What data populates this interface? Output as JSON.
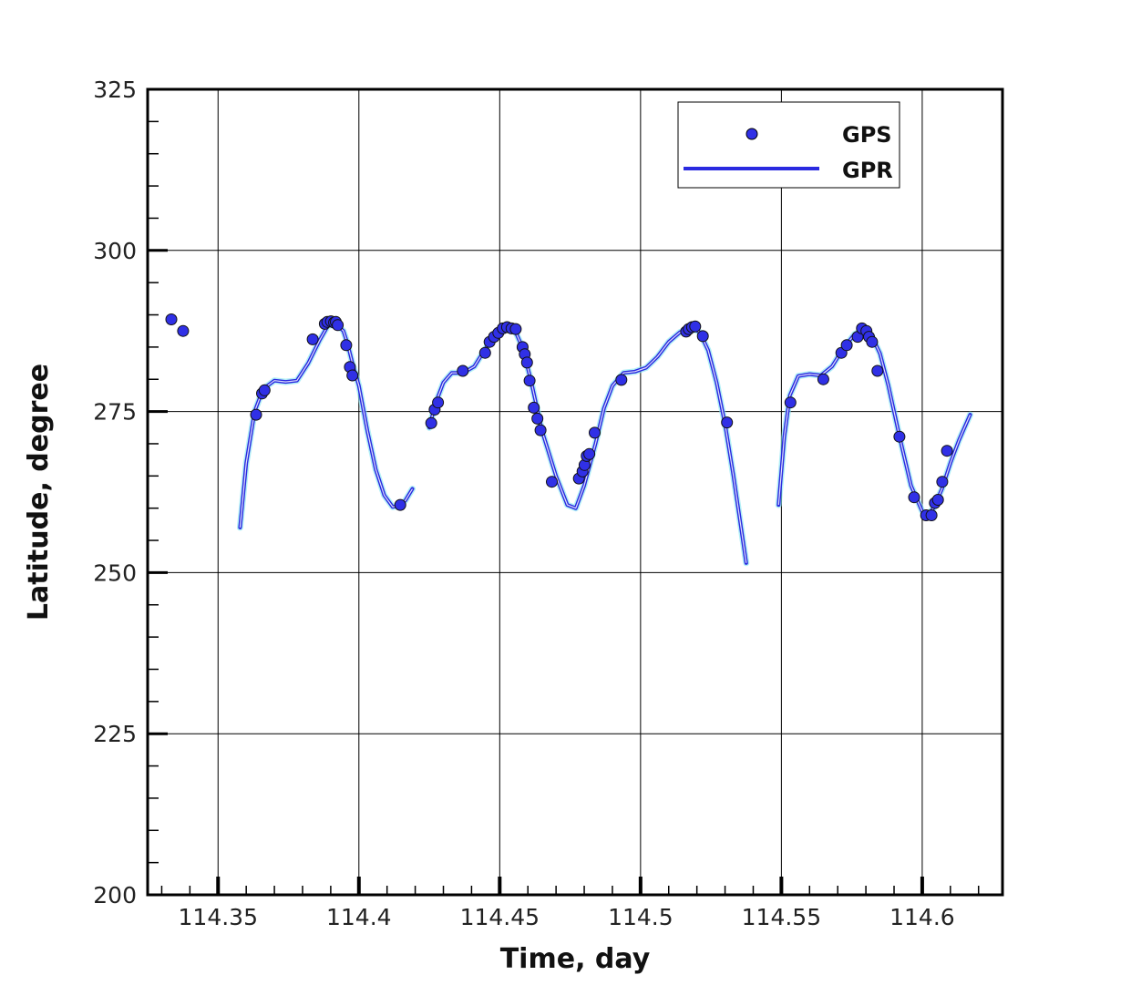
{
  "chart_data": {
    "type": "scatter",
    "title": "",
    "xlabel": "Time, day",
    "ylabel": "Latitude, degree",
    "xlim": [
      114.325,
      114.6285
    ],
    "ylim": [
      200,
      325
    ],
    "xticks": [
      114.35,
      114.4,
      114.45,
      114.5,
      114.55,
      114.6
    ],
    "xtick_labels": [
      "114.35",
      "114.4",
      "114.45",
      "114.5",
      "114.55",
      "114.6"
    ],
    "yticks": [
      200,
      225,
      250,
      275,
      300,
      325
    ],
    "ytick_labels": [
      "200",
      "225",
      "250",
      "275",
      "300",
      "325"
    ],
    "grid": true,
    "legend_position": "top-right",
    "colors": {
      "gps": "#3030e6",
      "gpr": "#2a2ae0",
      "gpr_band": "#7fe5f0"
    },
    "series": [
      {
        "name": "GPS",
        "kind": "points",
        "x": [
          114.3334,
          114.3376,
          114.3635,
          114.3656,
          114.3665,
          114.3836,
          114.3879,
          114.3888,
          114.3901,
          114.3912,
          114.3918,
          114.3925,
          114.3955,
          114.3968,
          114.3977,
          114.4147,
          114.4257,
          114.4269,
          114.4281,
          114.4369,
          114.4448,
          114.4464,
          114.448,
          114.4495,
          114.4511,
          114.4526,
          114.4542,
          114.4557,
          114.4581,
          114.4589,
          114.4597,
          114.4606,
          114.4621,
          114.4634,
          114.4645,
          114.4685,
          114.4781,
          114.4794,
          114.4801,
          114.4809,
          114.4818,
          114.4837,
          114.4932,
          114.5162,
          114.5171,
          114.5183,
          114.5194,
          114.5221,
          114.5307,
          114.5532,
          114.5649,
          114.5713,
          114.5732,
          114.5771,
          114.5786,
          114.5802,
          114.5811,
          114.5822,
          114.5841,
          114.5919,
          114.5971,
          114.6014,
          114.6033,
          114.6045,
          114.6056,
          114.6071,
          114.6088
        ],
        "y": [
          289.3,
          287.5,
          274.5,
          277.8,
          278.3,
          286.2,
          288.6,
          288.9,
          289.0,
          288.8,
          288.9,
          288.4,
          285.3,
          281.9,
          280.6,
          260.5,
          273.2,
          275.3,
          276.4,
          281.3,
          284.1,
          285.8,
          286.6,
          287.2,
          287.9,
          288.1,
          287.9,
          287.8,
          285.0,
          283.9,
          282.6,
          279.8,
          275.6,
          273.9,
          272.1,
          264.1,
          264.6,
          265.7,
          266.7,
          268.1,
          268.4,
          271.7,
          279.9,
          287.4,
          287.8,
          288.1,
          288.2,
          286.7,
          273.3,
          276.4,
          280.0,
          284.1,
          285.3,
          286.6,
          287.9,
          287.5,
          286.6,
          285.8,
          281.3,
          271.1,
          261.7,
          258.9,
          258.9,
          260.8,
          261.3,
          264.1,
          268.9
        ]
      },
      {
        "name": "GPR",
        "kind": "line",
        "segments": [
          {
            "x": [
              114.3578,
              114.36,
              114.363,
              114.366,
              114.37,
              114.374,
              114.378,
              114.382,
              114.386,
              114.389,
              114.392,
              114.3945,
              114.396,
              114.398,
              114.4,
              114.403,
              114.406,
              114.409,
              114.412,
              114.4145,
              114.4165,
              114.419
            ],
            "y": [
              257.0,
              267.0,
              275.0,
              278.5,
              279.8,
              279.6,
              279.8,
              282.5,
              286.0,
              288.3,
              288.5,
              287.5,
              285.5,
              282.0,
              279.0,
              272.0,
              266.0,
              262.0,
              260.2,
              260.4,
              261.2,
              263.0
            ]
          },
          {
            "x": [
              114.425,
              114.427,
              114.43,
              114.433,
              114.437,
              114.441,
              114.445,
              114.449,
              114.4525,
              114.4555,
              114.458,
              114.461,
              114.465,
              114.47,
              114.474,
              114.477,
              114.48,
              114.484,
              114.487,
              114.49,
              114.494,
              114.498,
              114.502,
              114.506,
              114.51,
              114.514,
              114.518,
              114.521,
              114.524,
              114.527,
              114.53,
              114.533,
              114.5375
            ],
            "y": [
              272.5,
              276.0,
              279.5,
              281.0,
              281.0,
              282.0,
              284.8,
              287.2,
              288.1,
              287.5,
              285.0,
              280.0,
              272.0,
              265.0,
              260.5,
              260.0,
              263.5,
              270.0,
              275.5,
              279.0,
              281.0,
              281.2,
              281.8,
              283.5,
              285.8,
              287.3,
              288.0,
              287.3,
              284.5,
              279.5,
              273.0,
              265.0,
              251.5
            ]
          },
          {
            "x": [
              114.549,
              114.551,
              114.553,
              114.556,
              114.56,
              114.564,
              114.568,
              114.572,
              114.576,
              114.579,
              114.582,
              114.585,
              114.588,
              114.592,
              114.596,
              114.6,
              114.602,
              114.604,
              114.607,
              114.61,
              114.613,
              114.617
            ],
            "y": [
              260.5,
              271.0,
              277.5,
              280.5,
              280.8,
              280.6,
              282.0,
              284.8,
              287.0,
              287.6,
              286.8,
              284.0,
              279.0,
              271.0,
              263.5,
              259.5,
              259.0,
              260.0,
              263.0,
              267.0,
              270.5,
              274.5
            ]
          }
        ]
      }
    ],
    "legend": [
      {
        "name": "GPS",
        "marker": "circle"
      },
      {
        "name": "GPR",
        "marker": "line"
      }
    ]
  }
}
